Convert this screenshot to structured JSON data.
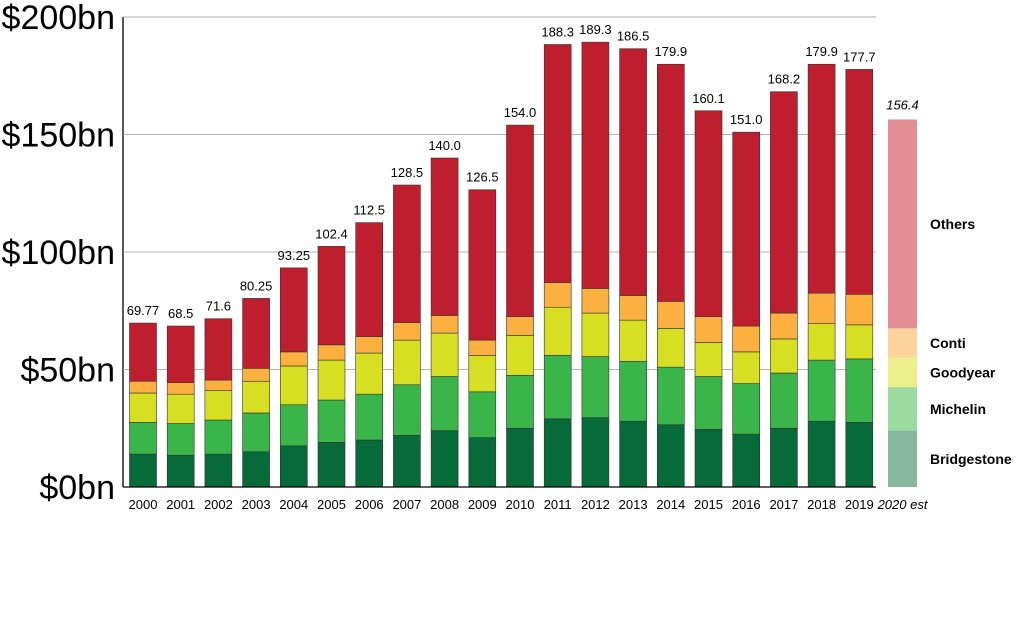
{
  "chart_data": {
    "type": "bar",
    "stacked": true,
    "title": "",
    "xlabel": "",
    "ylabel": "",
    "ylim": [
      0,
      200
    ],
    "y_ticks": [
      0,
      50,
      100,
      150,
      200
    ],
    "y_tick_labels": [
      "$0bn",
      "$50bn",
      "$100bn",
      "$150bn",
      "$200bn"
    ],
    "grid": false,
    "categories": [
      "2000",
      "2001",
      "2002",
      "2003",
      "2004",
      "2005",
      "2006",
      "2007",
      "2008",
      "2009",
      "2010",
      "2011",
      "2012",
      "2013",
      "2014",
      "2015",
      "2016",
      "2017",
      "2018",
      "2019"
    ],
    "totals": [
      69.77,
      68.5,
      71.6,
      80.25,
      93.25,
      102.4,
      112.5,
      128.5,
      140.0,
      126.5,
      154.0,
      188.3,
      189.3,
      186.5,
      179.9,
      160.1,
      151.0,
      168.2,
      179.9,
      177.7
    ],
    "total_labels": [
      "69.77",
      "68.5",
      "71.6",
      "80.25",
      "93.25",
      "102.4",
      "112.5",
      "128.5",
      "140.0",
      "126.5",
      "154.0",
      "188.3",
      "189.3",
      "186.5",
      "179.9",
      "160.1",
      "151.0",
      "168.2",
      "179.9",
      "177.7"
    ],
    "series": [
      {
        "name": "Bridgestone",
        "color": "#076a39",
        "values": [
          14,
          13.5,
          14,
          15,
          17.5,
          19,
          20,
          22,
          24,
          21,
          25,
          29,
          29.5,
          28,
          26.5,
          24.5,
          22.5,
          25,
          28,
          27.5
        ]
      },
      {
        "name": "Michelin",
        "color": "#3ab54a",
        "values": [
          13.5,
          13.5,
          14.5,
          16.5,
          17.5,
          18,
          19.5,
          21.5,
          23,
          19.5,
          22.5,
          27,
          26,
          25.5,
          24.5,
          22.5,
          21.5,
          23.5,
          26,
          27
        ]
      },
      {
        "name": "Goodyear",
        "color": "#d7df23",
        "values": [
          12.5,
          12.5,
          12.5,
          13.5,
          16.5,
          17,
          17.5,
          19,
          18.5,
          15.5,
          17,
          20.5,
          18.5,
          17.5,
          16.5,
          14.5,
          13.5,
          14.5,
          15.5,
          14.5
        ]
      },
      {
        "name": "Conti",
        "color": "#fbb040",
        "values": [
          5,
          5,
          4.5,
          5.5,
          6,
          6.5,
          7,
          7.5,
          7.5,
          6.5,
          8,
          10.5,
          10.5,
          10.5,
          11.5,
          11,
          11,
          11,
          13,
          13
        ]
      },
      {
        "name": "Others",
        "color": "#be1e2d",
        "values": [
          24.77,
          24,
          26.1,
          29.75,
          35.75,
          41.9,
          48.5,
          58.5,
          67,
          64,
          81.5,
          101.3,
          104.8,
          105,
          100.9,
          87.6,
          82.5,
          94.2,
          97.4,
          95.7
        ]
      }
    ],
    "estimate": {
      "category": "2020 est",
      "total": 156.4,
      "total_label": "156.4",
      "values": [
        24,
        18.5,
        12.5,
        12.5,
        88.9
      ],
      "colors": [
        "#86b8a0",
        "#9cdb9f",
        "#ebef8c",
        "#fdd39e",
        "#e38e95"
      ],
      "legend_labels": [
        "Bridgestone",
        "Michelin",
        "Goodyear",
        "Conti",
        "Others"
      ]
    }
  }
}
